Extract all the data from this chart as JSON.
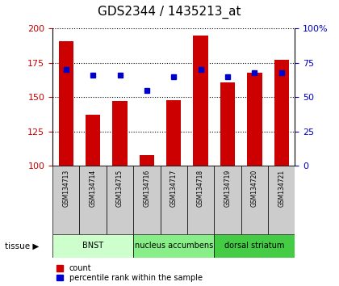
{
  "title": "GDS2344 / 1435213_at",
  "samples": [
    "GSM134713",
    "GSM134714",
    "GSM134715",
    "GSM134716",
    "GSM134717",
    "GSM134718",
    "GSM134719",
    "GSM134720",
    "GSM134721"
  ],
  "counts": [
    191,
    137,
    147,
    108,
    148,
    195,
    161,
    168,
    177
  ],
  "percentiles": [
    70,
    66,
    66,
    55,
    65,
    70,
    65,
    68,
    68
  ],
  "ylim_left": [
    100,
    200
  ],
  "ylim_right": [
    0,
    100
  ],
  "yticks_left": [
    100,
    125,
    150,
    175,
    200
  ],
  "yticks_right": [
    0,
    25,
    50,
    75,
    100
  ],
  "bar_color": "#cc0000",
  "dot_color": "#0000cc",
  "tissue_groups": [
    {
      "label": "BNST",
      "start": 0,
      "end": 2,
      "color": "#ccffcc"
    },
    {
      "label": "nucleus accumbens",
      "start": 3,
      "end": 5,
      "color": "#88ee88"
    },
    {
      "label": "dorsal striatum",
      "start": 6,
      "end": 8,
      "color": "#44cc44"
    }
  ],
  "legend_count": "count",
  "legend_percentile": "percentile rank within the sample",
  "bar_color_legend": "#cc0000",
  "dot_color_legend": "#0000cc",
  "tick_fontsize": 8,
  "bar_width": 0.55,
  "sample_box_color": "#cccccc",
  "title_fontsize": 11
}
